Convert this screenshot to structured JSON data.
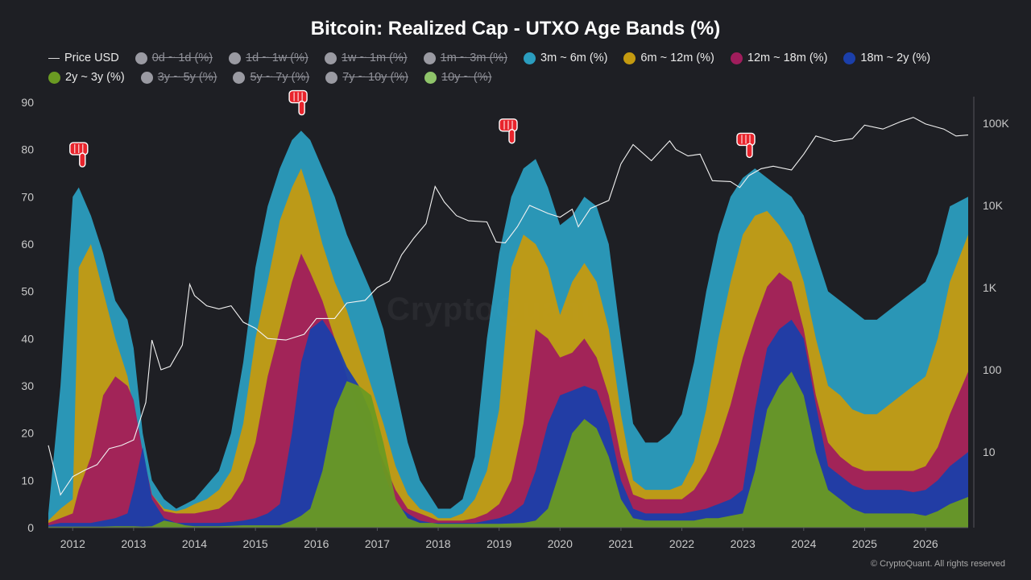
{
  "chart_data": {
    "type": "area",
    "title": "Bitcoin: Realized Cap - UTXO Age Bands (%)",
    "legend_placement": "top",
    "grid": false,
    "x_ticks": [
      "2012",
      "2013",
      "2014",
      "2015",
      "2016",
      "2017",
      "2018",
      "2019",
      "2020",
      "2021",
      "2022",
      "2023",
      "2024",
      "2025",
      "2026"
    ],
    "y_left_ticks": [
      0,
      10,
      20,
      30,
      40,
      50,
      60,
      70,
      80,
      90
    ],
    "y_left_range": [
      0,
      90
    ],
    "y_right_scale": "log",
    "y_right_ticks": [
      {
        "value": 10,
        "label": "10"
      },
      {
        "value": 100,
        "label": "100"
      },
      {
        "value": 1000,
        "label": "1K"
      },
      {
        "value": 10000,
        "label": "10K"
      },
      {
        "value": 100000,
        "label": "100K"
      }
    ],
    "x_range": [
      2011.6,
      2026.7
    ],
    "stack_x": [
      2011.6,
      2011.8,
      2012.0,
      2012.1,
      2012.3,
      2012.5,
      2012.7,
      2012.9,
      2013.0,
      2013.15,
      2013.3,
      2013.5,
      2013.7,
      2013.85,
      2014.0,
      2014.2,
      2014.4,
      2014.6,
      2014.8,
      2015.0,
      2015.2,
      2015.4,
      2015.6,
      2015.75,
      2015.9,
      2016.1,
      2016.3,
      2016.5,
      2016.7,
      2016.9,
      2017.1,
      2017.3,
      2017.5,
      2017.7,
      2017.9,
      2018.0,
      2018.2,
      2018.4,
      2018.6,
      2018.8,
      2019.0,
      2019.2,
      2019.4,
      2019.6,
      2019.8,
      2020.0,
      2020.2,
      2020.4,
      2020.6,
      2020.8,
      2021.0,
      2021.2,
      2021.4,
      2021.6,
      2021.8,
      2022.0,
      2022.2,
      2022.4,
      2022.6,
      2022.8,
      2023.0,
      2023.2,
      2023.4,
      2023.6,
      2023.8,
      2024.0,
      2024.2,
      2024.4,
      2024.6,
      2024.8,
      2025.0,
      2025.2,
      2025.4,
      2025.6,
      2025.8,
      2026.0,
      2026.2,
      2026.4,
      2026.7
    ],
    "series": [
      {
        "name": "2y ~ 3y (%)",
        "color": "#6a9a22",
        "values": [
          0.2,
          0.2,
          0.2,
          0.2,
          0.2,
          0.2,
          0.3,
          0.3,
          0.3,
          0.2,
          0.3,
          1.5,
          1.0,
          0.5,
          0.3,
          0.3,
          0.3,
          0.4,
          0.5,
          0.5,
          0.5,
          0.5,
          1.5,
          2.5,
          4,
          12,
          25,
          31,
          30,
          28,
          18,
          6,
          2,
          1,
          1,
          0.8,
          0.8,
          0.8,
          0.8,
          0.8,
          0.8,
          0.9,
          1,
          1.5,
          4,
          12,
          20,
          23,
          21,
          15,
          6,
          2,
          1.5,
          1.5,
          1.5,
          1.5,
          1.5,
          2,
          2,
          2.5,
          3,
          12,
          25,
          30,
          33,
          28,
          16,
          8,
          6,
          4,
          3,
          3,
          3,
          3,
          3,
          2.5,
          3.5,
          5,
          6.5
        ]
      },
      {
        "name": "18m ~ 2y (%)",
        "color": "#1b3faa",
        "values": [
          0.5,
          1,
          1,
          1,
          1,
          1.5,
          2,
          3,
          8,
          17,
          6,
          2,
          1,
          1,
          1,
          1,
          1,
          1.2,
          1.5,
          2,
          3,
          5,
          20,
          35,
          42,
          44,
          40,
          34,
          30,
          24,
          12,
          5,
          3,
          1.5,
          1,
          1,
          1,
          1,
          1,
          1.5,
          2,
          3,
          5,
          12,
          22,
          28,
          29,
          30,
          29,
          22,
          10,
          4,
          3,
          3,
          3,
          3,
          3.5,
          4,
          5,
          6,
          8,
          25,
          38,
          42,
          44,
          40,
          26,
          13,
          11,
          9,
          8,
          8,
          8,
          8,
          7.5,
          8,
          10,
          13,
          16
        ]
      },
      {
        "name": "12m ~ 18m (%)",
        "color": "#a01d5c",
        "values": [
          1,
          2,
          3,
          8,
          15,
          28,
          32,
          30,
          27,
          16,
          7,
          3.5,
          3,
          3,
          3,
          3.5,
          4,
          6,
          10,
          18,
          32,
          42,
          52,
          58,
          54,
          48,
          40,
          32,
          24,
          20,
          14,
          8,
          4,
          3,
          2,
          1.5,
          1.5,
          1.5,
          2,
          3,
          5,
          10,
          22,
          42,
          40,
          36,
          37,
          40,
          36,
          28,
          15,
          7,
          6,
          6,
          6,
          6,
          8,
          12,
          18,
          26,
          36,
          44,
          51,
          54,
          52,
          42,
          28,
          18,
          15,
          13,
          12,
          12,
          12,
          12,
          12,
          13,
          17,
          24,
          33
        ]
      },
      {
        "name": "6m ~ 12m (%)",
        "color": "#c49a10",
        "values": [
          1.5,
          4,
          6,
          55,
          60,
          50,
          40,
          32,
          25,
          14,
          7,
          4,
          3.5,
          4,
          5,
          6,
          8,
          12,
          22,
          40,
          52,
          65,
          72,
          76,
          70,
          60,
          52,
          46,
          38,
          30,
          22,
          13,
          7,
          4,
          3,
          2,
          2,
          3,
          6,
          12,
          25,
          55,
          62,
          60,
          55,
          45,
          52,
          56,
          52,
          42,
          24,
          10,
          8,
          8,
          8,
          9,
          14,
          25,
          40,
          52,
          62,
          66,
          67,
          64,
          60,
          52,
          40,
          30,
          28,
          25,
          24,
          24,
          26,
          28,
          30,
          32,
          40,
          52,
          62
        ]
      },
      {
        "name": "3m ~ 6m (%)",
        "color": "#2b9dbf",
        "values": [
          3,
          30,
          70,
          72,
          66,
          58,
          48,
          44,
          38,
          20,
          10,
          6,
          4,
          5,
          6,
          9,
          12,
          20,
          35,
          55,
          68,
          76,
          82,
          84,
          82,
          76,
          70,
          62,
          56,
          50,
          42,
          30,
          18,
          10,
          6,
          4,
          4,
          6,
          15,
          40,
          58,
          70,
          76,
          78,
          72,
          64,
          66,
          70,
          68,
          60,
          40,
          22,
          18,
          18,
          20,
          24,
          35,
          50,
          62,
          70,
          74,
          76,
          74,
          72,
          70,
          66,
          58,
          50,
          48,
          46,
          44,
          44,
          46,
          48,
          50,
          52,
          58,
          68,
          70
        ]
      }
    ],
    "price_x": [
      2011.6,
      2011.8,
      2012.0,
      2012.2,
      2012.4,
      2012.6,
      2012.8,
      2013.0,
      2013.2,
      2013.3,
      2013.45,
      2013.6,
      2013.8,
      2013.92,
      2014.0,
      2014.2,
      2014.4,
      2014.6,
      2014.8,
      2015.0,
      2015.2,
      2015.5,
      2015.8,
      2016.0,
      2016.3,
      2016.5,
      2016.8,
      2017.0,
      2017.2,
      2017.4,
      2017.6,
      2017.8,
      2017.95,
      2018.1,
      2018.3,
      2018.5,
      2018.8,
      2018.95,
      2019.1,
      2019.3,
      2019.5,
      2019.8,
      2020.0,
      2020.2,
      2020.3,
      2020.5,
      2020.8,
      2021.0,
      2021.2,
      2021.5,
      2021.8,
      2021.9,
      2022.1,
      2022.3,
      2022.5,
      2022.8,
      2022.95,
      2023.1,
      2023.3,
      2023.5,
      2023.8,
      2024.0,
      2024.2,
      2024.5,
      2024.8,
      2025.0,
      2025.3,
      2025.6,
      2025.8,
      2026.0,
      2026.3,
      2026.5,
      2026.7
    ],
    "price_usd": [
      12,
      3,
      5,
      6,
      7,
      11,
      12,
      14,
      40,
      230,
      100,
      110,
      200,
      1100,
      800,
      600,
      550,
      600,
      380,
      320,
      240,
      230,
      270,
      420,
      420,
      650,
      700,
      1000,
      1200,
      2500,
      4000,
      6000,
      17000,
      11000,
      7500,
      6500,
      6300,
      3600,
      3500,
      5500,
      10000,
      8000,
      7200,
      9000,
      5500,
      9200,
      11500,
      32000,
      55000,
      35000,
      61000,
      48000,
      40000,
      42000,
      20000,
      19500,
      16500,
      23000,
      28000,
      30000,
      27000,
      42000,
      70000,
      60000,
      65000,
      95000,
      85000,
      105000,
      118000,
      98000,
      85000,
      70000,
      72000
    ]
  },
  "legend": [
    {
      "label": "Price USD",
      "kind": "line",
      "color": "#d8d8d8",
      "enabled": true
    },
    {
      "label": "0d ~ 1d (%)",
      "kind": "dot",
      "color": "#9a9aa2",
      "enabled": false
    },
    {
      "label": "1d ~ 1w (%)",
      "kind": "dot",
      "color": "#9a9aa2",
      "enabled": false
    },
    {
      "label": "1w ~ 1m (%)",
      "kind": "dot",
      "color": "#9a9aa2",
      "enabled": false
    },
    {
      "label": "1m ~ 3m (%)",
      "kind": "dot",
      "color": "#9a9aa2",
      "enabled": false
    },
    {
      "label": "3m ~ 6m (%)",
      "kind": "dot",
      "color": "#2b9dbf",
      "enabled": true
    },
    {
      "label": "6m ~ 12m (%)",
      "kind": "dot",
      "color": "#c49a10",
      "enabled": true
    },
    {
      "label": "12m ~ 18m (%)",
      "kind": "dot",
      "color": "#a01d5c",
      "enabled": true
    },
    {
      "label": "18m ~ 2y (%)",
      "kind": "dot",
      "color": "#1b3faa",
      "enabled": true
    },
    {
      "label": "2y ~ 3y (%)",
      "kind": "dot",
      "color": "#6a9a22",
      "enabled": true
    },
    {
      "label": "3y ~ 5y (%)",
      "kind": "dot",
      "color": "#9a9aa2",
      "enabled": false
    },
    {
      "label": "5y ~ 7y (%)",
      "kind": "dot",
      "color": "#9a9aa2",
      "enabled": false
    },
    {
      "label": "7y ~ 10y (%)",
      "kind": "dot",
      "color": "#9a9aa2",
      "enabled": false
    },
    {
      "label": "10y ~ (%)",
      "kind": "dot",
      "color": "#8fc46a",
      "enabled": false
    }
  ],
  "annotations": [
    {
      "icon": "pointing-down-hand-icon",
      "x": 2012.1,
      "y": 76
    },
    {
      "icon": "pointing-down-hand-icon",
      "x": 2015.7,
      "y": 87
    },
    {
      "icon": "pointing-down-hand-icon",
      "x": 2019.15,
      "y": 81
    },
    {
      "icon": "pointing-down-hand-icon",
      "x": 2023.05,
      "y": 78
    }
  ],
  "watermark": "CryptoQuant",
  "copyright": "© CryptoQuant. All rights reserved"
}
